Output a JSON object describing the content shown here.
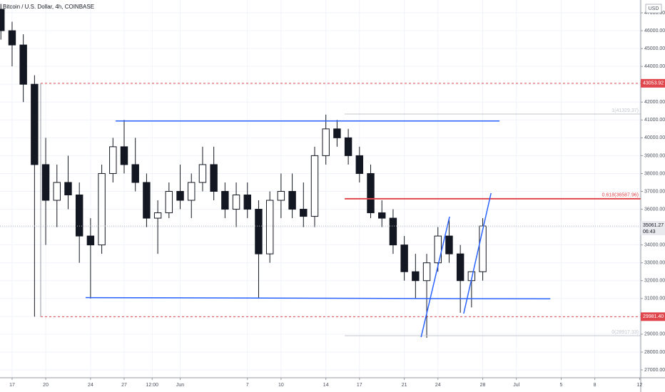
{
  "chart_data": {
    "type": "candlestick",
    "title": "Bitcoin / U.S. Dollar, 4h, COINBASE",
    "currency": "USD",
    "x": [
      -1,
      0,
      1,
      2,
      3,
      4,
      5,
      6,
      7,
      8,
      9,
      10,
      11,
      12,
      13,
      14,
      15,
      16,
      17,
      18,
      19,
      20,
      21,
      22,
      23,
      24,
      25,
      26,
      27,
      28,
      29,
      30,
      31,
      32,
      33,
      34,
      35,
      36,
      37,
      38,
      39,
      40,
      41,
      42
    ],
    "open": [
      47200,
      46000,
      45200,
      43000,
      38500,
      36500,
      37500,
      36800,
      34500,
      34000,
      38000,
      39500,
      38500,
      37500,
      35500,
      35800,
      37000,
      36500,
      37500,
      38500,
      37000,
      36000,
      36800,
      36000,
      33500,
      36500,
      37000,
      36000,
      35600,
      39000,
      40500,
      40000,
      39000,
      38000,
      35800,
      35500,
      34000,
      32500,
      32000,
      33000,
      34500,
      33500,
      32000,
      32500
    ],
    "high": [
      47500,
      46500,
      45800,
      43500,
      40000,
      38500,
      39000,
      37500,
      35500,
      38500,
      40000,
      41000,
      40000,
      38000,
      36500,
      37500,
      38500,
      38000,
      39500,
      39500,
      37500,
      37500,
      37500,
      36500,
      37000,
      38000,
      38000,
      37500,
      39500,
      41300,
      41000,
      40500,
      39500,
      38500,
      36500,
      36000,
      34500,
      33500,
      33500,
      35000,
      35500,
      34000,
      32500,
      35500
    ],
    "low": [
      45500,
      44000,
      42000,
      29981,
      34000,
      35000,
      36000,
      33000,
      31000,
      33500,
      37500,
      38000,
      37000,
      35000,
      33500,
      35500,
      36000,
      35500,
      37000,
      36500,
      35500,
      35000,
      35500,
      31000,
      33000,
      35500,
      35500,
      35000,
      35000,
      38500,
      39500,
      38500,
      37500,
      35500,
      35000,
      33500,
      32000,
      31000,
      28800,
      32500,
      33000,
      30200,
      30500,
      32000
    ],
    "close": [
      46000,
      45200,
      43000,
      38500,
      36500,
      37500,
      36800,
      34500,
      34000,
      38000,
      39500,
      38500,
      37500,
      35500,
      35800,
      37000,
      36500,
      37500,
      38500,
      37000,
      36000,
      36800,
      36000,
      33500,
      36500,
      37000,
      36000,
      35600,
      39000,
      40500,
      40000,
      39000,
      38000,
      35800,
      35500,
      34000,
      32500,
      32000,
      33000,
      34500,
      33500,
      32000,
      32500,
      35061.27
    ],
    "up_color": "#ffffff",
    "down_color": "#131722",
    "xlim": [
      -1.08,
      56.1
    ],
    "xticks": [
      {
        "value": 0,
        "label": "17"
      },
      {
        "value": 3,
        "label": "20"
      },
      {
        "value": 7,
        "label": "24"
      },
      {
        "value": 10,
        "label": "27"
      },
      {
        "value": 12.5,
        "label": "12:00"
      },
      {
        "value": 15,
        "label": "Jun"
      },
      {
        "value": 21,
        "label": "7"
      },
      {
        "value": 24,
        "label": "10"
      },
      {
        "value": 28,
        "label": "14"
      },
      {
        "value": 31,
        "label": "17"
      },
      {
        "value": 35,
        "label": "21"
      },
      {
        "value": 38,
        "label": "24"
      },
      {
        "value": 42,
        "label": "28"
      },
      {
        "value": 45,
        "label": "Jul"
      },
      {
        "value": 49,
        "label": "5"
      },
      {
        "value": 52,
        "label": "8"
      },
      {
        "value": 56,
        "label": "12"
      }
    ],
    "ylim": [
      26561,
      47719
    ],
    "yticks": [
      {
        "value": 27000,
        "label": "27000.00"
      },
      {
        "value": 28000,
        "label": "28000.00"
      },
      {
        "value": 29000,
        "label": "29000.00"
      },
      {
        "value": 30000,
        "label": "30000.00"
      },
      {
        "value": 31000,
        "label": "31000.00"
      },
      {
        "value": 32000,
        "label": "32000.00"
      },
      {
        "value": 33000,
        "label": "33000.00"
      },
      {
        "value": 34000,
        "label": "34000.00"
      },
      {
        "value": 35000,
        "label": "35000.00"
      },
      {
        "value": 36000,
        "label": "36000.00"
      },
      {
        "value": 37000,
        "label": "37000.00"
      },
      {
        "value": 38000,
        "label": "38000.00"
      },
      {
        "value": 39000,
        "label": "39000.00"
      },
      {
        "value": 40000,
        "label": "40000.00"
      },
      {
        "value": 41000,
        "label": "41000.00"
      },
      {
        "value": 42000,
        "label": "42000.00"
      },
      {
        "value": 43000,
        "label": "43000.00"
      },
      {
        "value": 44000,
        "label": "44000.00"
      },
      {
        "value": 45000,
        "label": "45000.00"
      },
      {
        "value": 46000,
        "label": "46000.00"
      },
      {
        "value": 47000,
        "label": "47000.00"
      }
    ],
    "grid": true,
    "levels": [
      {
        "value": 43053.92,
        "label": "43053.92",
        "start": 2.55,
        "color": "#e0474c"
      },
      {
        "value": 29981.4,
        "label": "29981.40",
        "start": 2.55,
        "color": "#e0474c"
      }
    ],
    "fib": {
      "start": 29.68,
      "levels": [
        {
          "value": 41329.37,
          "label": "1(41329.37)",
          "color": "#c3c6ce"
        },
        {
          "value": 36587.96,
          "label": "0.618(36587.96)",
          "color": "#e0474c"
        },
        {
          "value": 28917.33,
          "label": "0(28917.33)",
          "color": "#c3c6ce"
        }
      ]
    },
    "lines": [
      {
        "x": [
          9.24,
          43.5
        ],
        "y": [
          40940,
          40940
        ],
        "color": "#2962ff"
      },
      {
        "x": [
          6.56,
          48.03
        ],
        "y": [
          31050,
          30980
        ],
        "color": "#2962ff"
      },
      {
        "x": [
          36.5,
          39.04
        ],
        "y": [
          28836,
          35583
        ],
        "color": "#2962ff"
      },
      {
        "x": [
          40.3,
          42.74
        ],
        "y": [
          30154,
          36900
        ],
        "color": "#2962ff"
      }
    ],
    "last_price": {
      "value": 35061.27,
      "label": "35061.27",
      "timer": "06:43"
    }
  }
}
